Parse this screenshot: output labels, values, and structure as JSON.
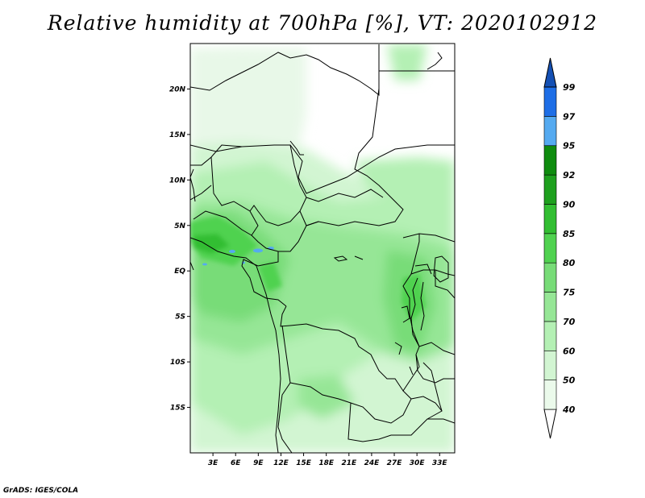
{
  "title": "Relative humidity at 700hPa [%], VT: 2020102912",
  "credit": "GrADS: IGES/COLA",
  "map": {
    "lon_range": [
      0,
      35
    ],
    "lat_range": [
      -20,
      25
    ],
    "lat_labels": [
      {
        "lat": 20,
        "label": "20N"
      },
      {
        "lat": 15,
        "label": "15N"
      },
      {
        "lat": 10,
        "label": "10N"
      },
      {
        "lat": 5,
        "label": "5N"
      },
      {
        "lat": 0,
        "label": "EQ"
      },
      {
        "lat": -5,
        "label": "5S"
      },
      {
        "lat": -10,
        "label": "10S"
      },
      {
        "lat": -15,
        "label": "15S"
      }
    ],
    "lon_labels": [
      {
        "lon": 3,
        "label": "3E"
      },
      {
        "lon": 6,
        "label": "6E"
      },
      {
        "lon": 9,
        "label": "9E"
      },
      {
        "lon": 12,
        "label": "12E"
      },
      {
        "lon": 15,
        "label": "15E"
      },
      {
        "lon": 18,
        "label": "18E"
      },
      {
        "lon": 21,
        "label": "21E"
      },
      {
        "lon": 24,
        "label": "24E"
      },
      {
        "lon": 27,
        "label": "27E"
      },
      {
        "lon": 30,
        "label": "30E"
      },
      {
        "lon": 33,
        "label": "33E"
      }
    ]
  },
  "colorbar": {
    "levels": [
      "40",
      "50",
      "60",
      "70",
      "75",
      "80",
      "85",
      "90",
      "92",
      "95",
      "97",
      "99"
    ],
    "colors": [
      "#ffffff",
      "#ebfaeb",
      "#d2f5d2",
      "#b4f0b4",
      "#96e696",
      "#78dc78",
      "#50d250",
      "#32be32",
      "#1ea01e",
      "#0f8c0f",
      "#55aaf0",
      "#1e6ee6",
      "#1450b4"
    ]
  }
}
